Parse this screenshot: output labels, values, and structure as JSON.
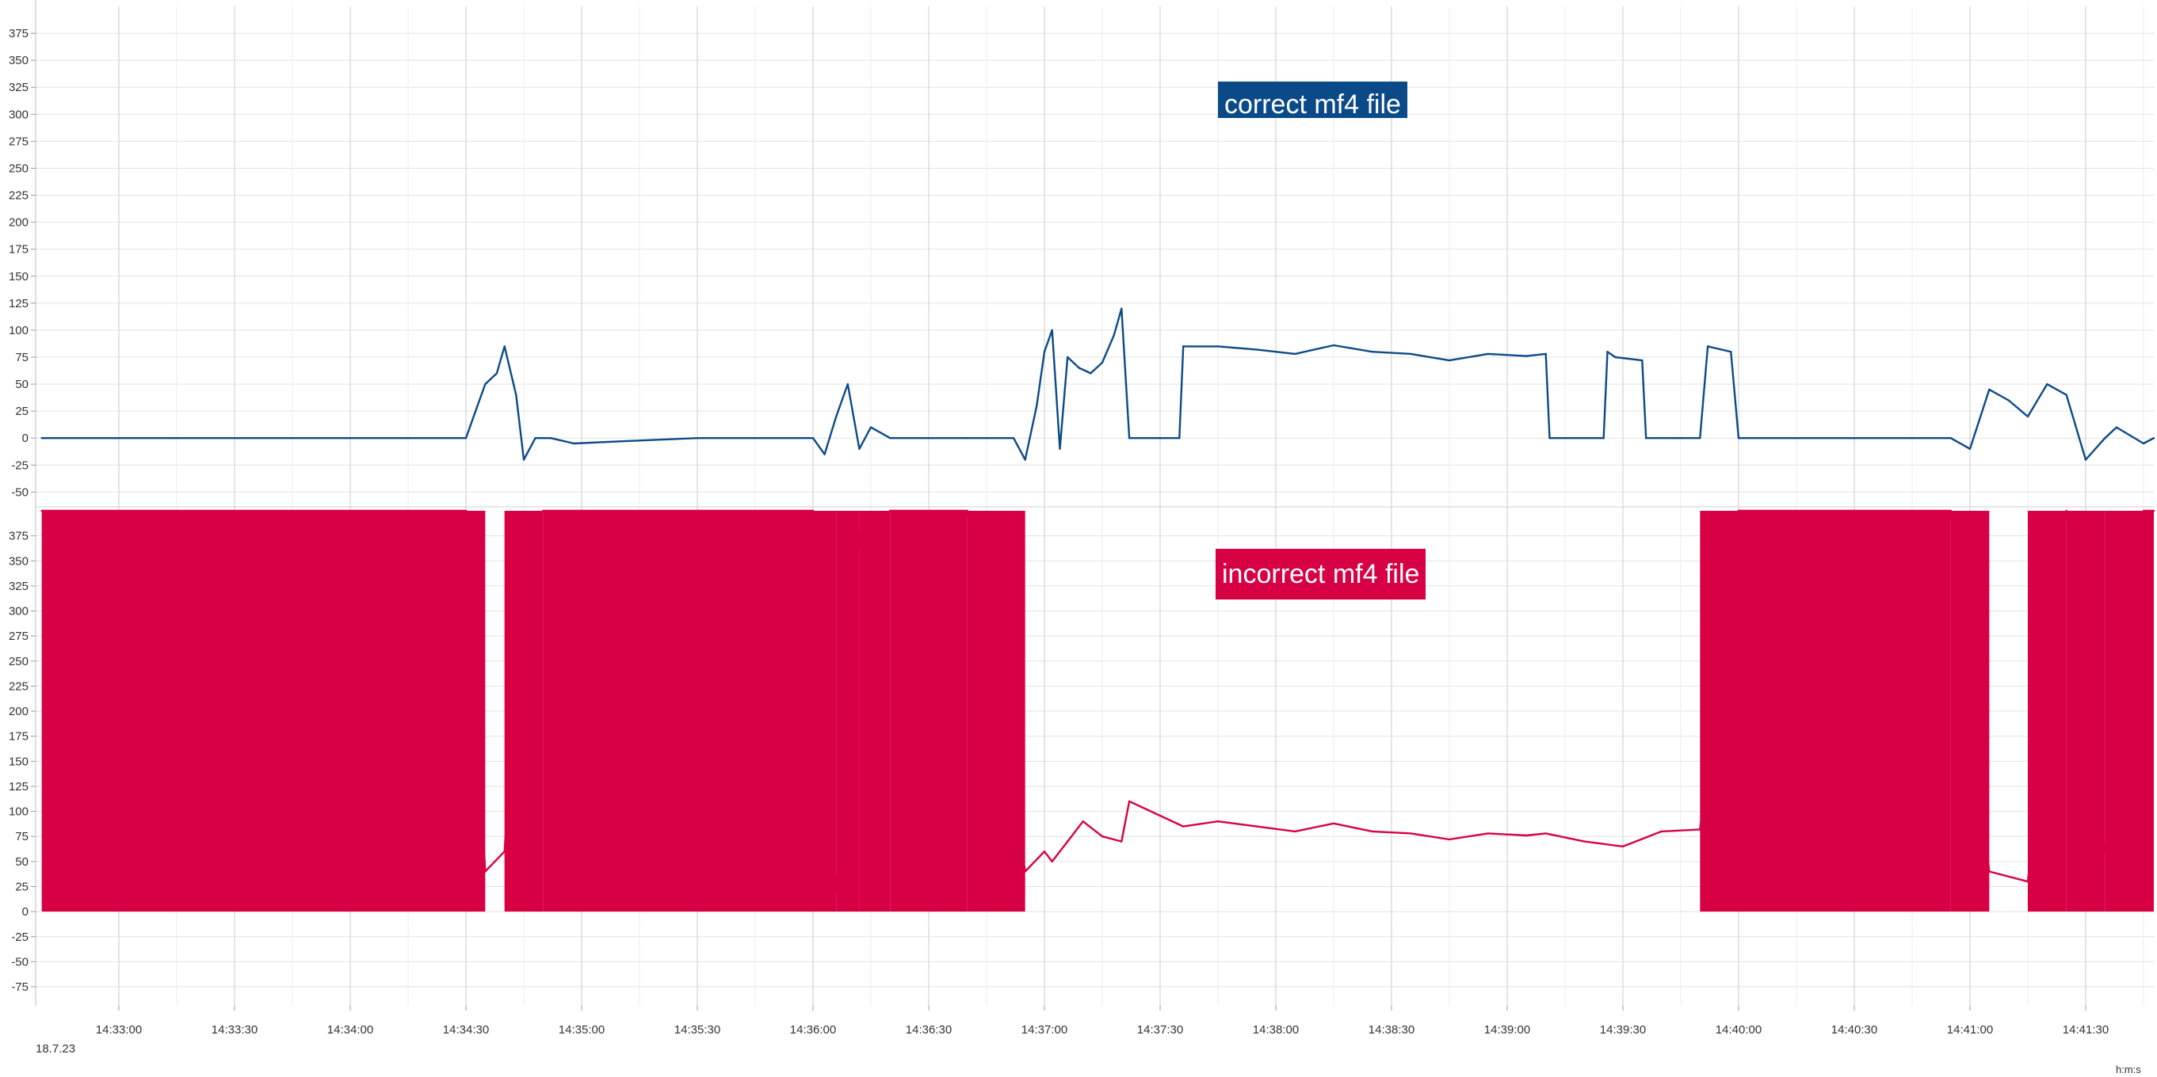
{
  "colors": {
    "series_1": "#0b4a88",
    "series_2": "#d80044",
    "grid": "#e2e2e2",
    "grid_major": "#d4d4d4",
    "axis_text": "#333333"
  },
  "chart_data": [
    {
      "type": "line",
      "series": [
        {
          "legend_label": "correct mf4 file",
          "color": "#0b4a88",
          "x": [
            "14:32:40",
            "14:34:30",
            "14:34:32",
            "14:34:35",
            "14:34:38",
            "14:34:40",
            "14:34:43",
            "14:34:45",
            "14:34:48",
            "14:34:52",
            "14:34:58",
            "14:35:10",
            "14:35:30",
            "14:36:00",
            "14:36:03",
            "14:36:06",
            "14:36:09",
            "14:36:12",
            "14:36:15",
            "14:36:20",
            "14:36:40",
            "14:36:52",
            "14:36:55",
            "14:36:58",
            "14:37:00",
            "14:37:02",
            "14:37:04",
            "14:37:06",
            "14:37:09",
            "14:37:12",
            "14:37:15",
            "14:37:18",
            "14:37:20",
            "14:37:22",
            "14:37:30",
            "14:37:35",
            "14:37:36",
            "14:37:45",
            "14:37:55",
            "14:38:05",
            "14:38:15",
            "14:38:25",
            "14:38:35",
            "14:38:45",
            "14:38:55",
            "14:39:05",
            "14:39:10",
            "14:39:11",
            "14:39:25",
            "14:39:26",
            "14:39:28",
            "14:39:35",
            "14:39:36",
            "14:39:50",
            "14:39:52",
            "14:39:58",
            "14:40:00",
            "14:40:30",
            "14:40:55",
            "14:41:00",
            "14:41:05",
            "14:41:10",
            "14:41:15",
            "14:41:20",
            "14:41:25",
            "14:41:30",
            "14:41:35",
            "14:41:38",
            "14:41:45",
            "14:41:52"
          ],
          "y": [
            0,
            0,
            20,
            50,
            60,
            85,
            40,
            -20,
            0,
            0,
            -5,
            -3,
            0,
            0,
            -15,
            20,
            50,
            -10,
            10,
            0,
            0,
            0,
            -20,
            30,
            80,
            100,
            -10,
            75,
            65,
            60,
            70,
            95,
            120,
            0,
            0,
            0,
            85,
            85,
            82,
            78,
            86,
            80,
            78,
            72,
            78,
            76,
            78,
            0,
            0,
            80,
            75,
            72,
            0,
            0,
            85,
            80,
            0,
            0,
            0,
            -10,
            45,
            35,
            20,
            50,
            40,
            -20,
            0,
            10,
            -5,
            0
          ]
        }
      ],
      "y_ticks": [
        "375",
        "350",
        "325",
        "300",
        "275",
        "250",
        "225",
        "200",
        "175",
        "150",
        "125",
        "100",
        "75",
        "50",
        "25",
        "0",
        "-25",
        "-50"
      ],
      "ylim": [
        -60,
        400
      ]
    },
    {
      "type": "line",
      "series": [
        {
          "legend_label": "incorrect mf4 file",
          "color": "#d80044",
          "x": [
            "14:32:40",
            "14:34:30",
            "14:34:35",
            "14:34:40",
            "14:34:45",
            "14:34:50",
            "14:35:00",
            "14:35:30",
            "14:36:00",
            "14:36:06",
            "14:36:12",
            "14:36:20",
            "14:36:40",
            "14:36:55",
            "14:37:00",
            "14:37:02",
            "14:37:06",
            "14:37:10",
            "14:37:15",
            "14:37:20",
            "14:37:22",
            "14:37:36",
            "14:37:45",
            "14:37:55",
            "14:38:05",
            "14:38:15",
            "14:38:25",
            "14:38:35",
            "14:38:45",
            "14:38:55",
            "14:39:05",
            "14:39:10",
            "14:39:20",
            "14:39:30",
            "14:39:40",
            "14:39:50",
            "14:40:00",
            "14:40:30",
            "14:40:55",
            "14:41:05",
            "14:41:15",
            "14:41:25",
            "14:41:35",
            "14:41:45",
            "14:41:52"
          ],
          "y": [
            400,
            400,
            40,
            60,
            380,
            400,
            400,
            400,
            400,
            20,
            380,
            400,
            400,
            40,
            60,
            50,
            70,
            90,
            75,
            70,
            110,
            85,
            90,
            85,
            80,
            88,
            80,
            78,
            72,
            78,
            76,
            78,
            70,
            65,
            80,
            82,
            400,
            400,
            400,
            40,
            30,
            400,
            60,
            400,
            400
          ]
        }
      ],
      "y_ticks": [
        "375",
        "350",
        "325",
        "300",
        "275",
        "250",
        "225",
        "200",
        "175",
        "150",
        "125",
        "100",
        "75",
        "50",
        "25",
        "0",
        "-25",
        "-50",
        "-75"
      ],
      "ylim": [
        -90,
        400
      ]
    }
  ],
  "x_axis": {
    "tick_labels": [
      "14:33:00",
      "14:33:30",
      "14:34:00",
      "14:34:30",
      "14:35:00",
      "14:35:30",
      "14:36:00",
      "14:36:30",
      "14:37:00",
      "14:37:30",
      "14:38:00",
      "14:38:30",
      "14:39:00",
      "14:39:30",
      "14:40:00",
      "14:40:30",
      "14:41:00",
      "14:41:30"
    ],
    "date_label": "18.7.23",
    "unit_label": "h:m:s"
  }
}
